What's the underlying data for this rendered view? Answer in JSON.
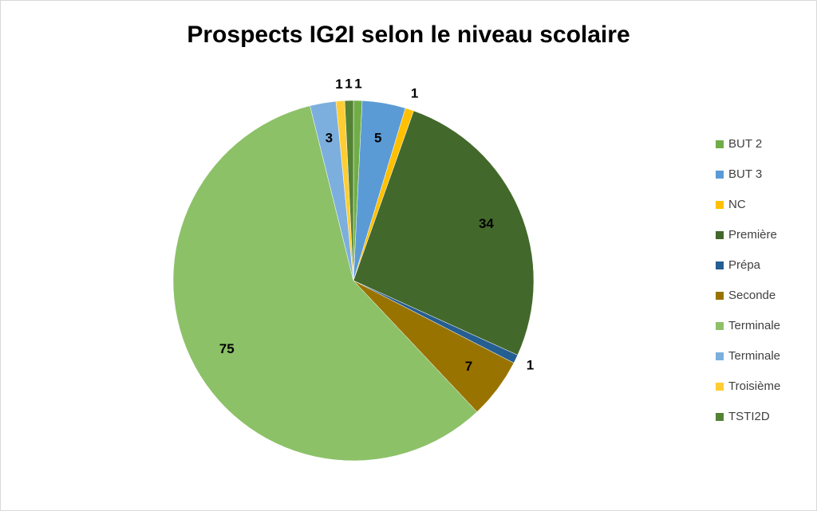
{
  "chart_data": {
    "type": "pie",
    "title": "Prospects IG2I selon le niveau scolaire",
    "categories": [
      "BUT 2",
      "BUT 3",
      "NC",
      "Première",
      "Prépa",
      "Seconde",
      "Terminale",
      "Terminale",
      "Troisième",
      "TSTI2D"
    ],
    "values": [
      1,
      5,
      1,
      34,
      1,
      7,
      75,
      3,
      1,
      1
    ],
    "colors": [
      "#70ad47",
      "#5b9bd5",
      "#ffc000",
      "#43682b",
      "#255e91",
      "#997300",
      "#8cc168",
      "#7cafdd",
      "#ffcd33",
      "#548235"
    ],
    "legend": "right"
  }
}
